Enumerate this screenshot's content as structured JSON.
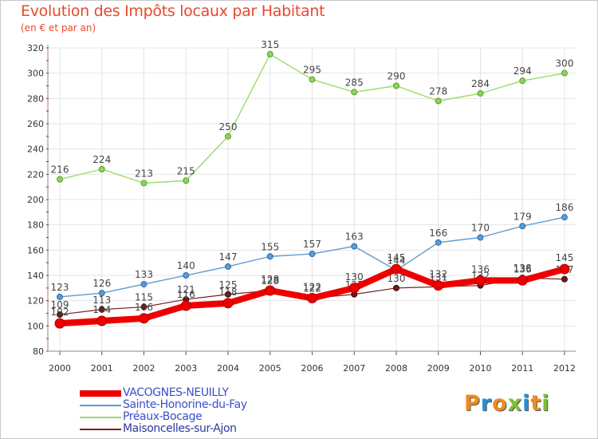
{
  "title": "Evolution des Impôts locaux par Habitant",
  "subtitle": "(en € et par an)",
  "logo": {
    "letters": [
      "P",
      "r",
      "o",
      "x",
      "i",
      "t",
      "i"
    ],
    "colors": [
      "#f08c1e",
      "#2b8fd6",
      "#f08c1e",
      "#7bbf3a",
      "#2b8fd6",
      "#f08c1e",
      "#7bbf3a"
    ]
  },
  "chart_data": {
    "type": "line",
    "title": "Evolution des Impôts locaux par Habitant",
    "ylabel": "(en € et par an)",
    "x": [
      "2000",
      "2001",
      "2002",
      "2003",
      "2004",
      "2005",
      "2006",
      "2007",
      "2008",
      "2009",
      "2010",
      "2011",
      "2012"
    ],
    "ylim": [
      80,
      320
    ],
    "yticks": [
      "80",
      "100",
      "120",
      "140",
      "160",
      "180",
      "200",
      "220",
      "240",
      "260",
      "280",
      "300",
      "320"
    ],
    "grid": true,
    "legend": "bottom-left",
    "series": [
      {
        "name": "Maisoncelles-sur-Ajon",
        "color": "#7a2020",
        "values": [
          109,
          113,
          115,
          121,
          125,
          128,
          122,
          125,
          130,
          131,
          132,
          138,
          137
        ]
      },
      {
        "name": "Sainte-Honorine-du-Fay",
        "color": "#5b9bd5",
        "values": [
          123,
          126,
          133,
          140,
          147,
          155,
          157,
          163,
          144,
          166,
          170,
          179,
          186
        ]
      },
      {
        "name": "Préaux-Bocage",
        "color": "#99dd66",
        "values": [
          216,
          224,
          213,
          215,
          250,
          315,
          295,
          285,
          290,
          278,
          284,
          294,
          300
        ]
      },
      {
        "name": "VACOGNES-NEUILLY",
        "color": "#ee0000",
        "values": [
          102,
          104,
          106,
          116,
          118,
          128,
          122,
          130,
          145,
          132,
          136,
          136,
          145
        ]
      }
    ],
    "legend_order": [
      "VACOGNES-NEUILLY",
      "Sainte-Honorine-du-Fay",
      "Préaux-Bocage",
      "Maisoncelles-sur-Ajon"
    ]
  }
}
